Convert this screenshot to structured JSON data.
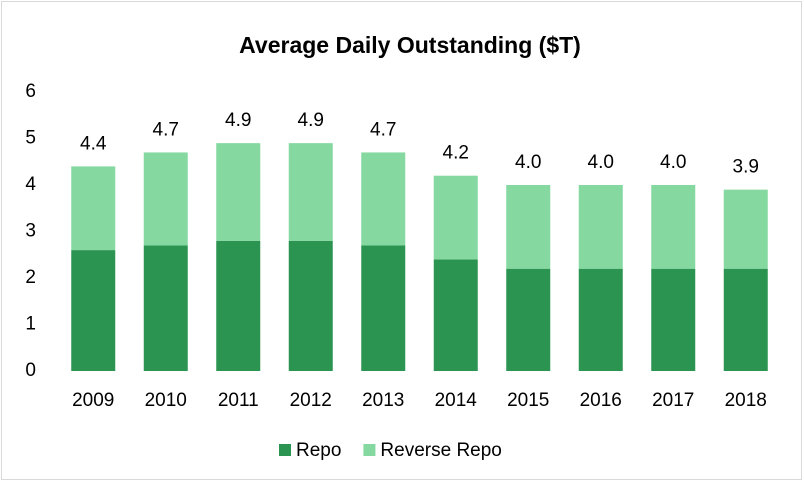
{
  "chart_data": {
    "type": "stacked_bar",
    "title": "Average Daily Outstanding ($T)",
    "categories": [
      "2009",
      "2010",
      "2011",
      "2012",
      "2013",
      "2014",
      "2015",
      "2016",
      "2017",
      "2018"
    ],
    "series": [
      {
        "name": "Repo",
        "color": "#2a9450",
        "values": [
          2.6,
          2.7,
          2.8,
          2.8,
          2.7,
          2.4,
          2.2,
          2.2,
          2.2,
          2.2
        ]
      },
      {
        "name": "Reverse Repo",
        "color": "#84d8a0",
        "values": [
          1.8,
          2.0,
          2.1,
          2.1,
          2.0,
          1.8,
          1.8,
          1.8,
          1.8,
          1.7
        ]
      }
    ],
    "totals": [
      4.4,
      4.7,
      4.9,
      4.9,
      4.7,
      4.2,
      4.0,
      4.0,
      4.0,
      3.9
    ],
    "total_labels": [
      "4.4",
      "4.7",
      "4.9",
      "4.9",
      "4.7",
      "4.2",
      "4.0",
      "4.0",
      "4.0",
      "3.9"
    ],
    "ylim": [
      0,
      6
    ],
    "yticks": [
      0,
      1,
      2,
      3,
      4,
      5,
      6
    ],
    "grid": false,
    "legend": "bottom"
  }
}
